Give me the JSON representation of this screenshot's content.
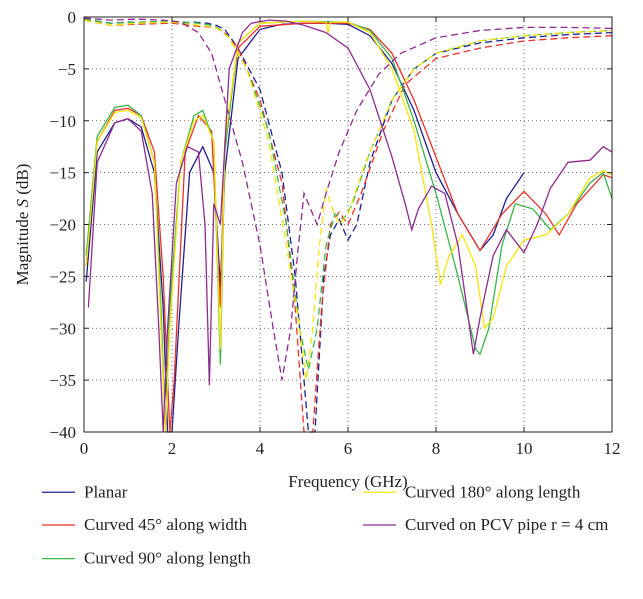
{
  "chart_data": {
    "type": "line",
    "xlabel": "Frequency (GHz)",
    "ylabel_prefix": "Magnitude ",
    "ylabel_var": "S",
    "ylabel_suffix": " (dB)",
    "xlim": [
      0,
      12
    ],
    "ylim": [
      -40,
      0
    ],
    "xticks": [
      0,
      2,
      4,
      6,
      8,
      10,
      12
    ],
    "yticks": [
      0,
      -5,
      -10,
      -15,
      -20,
      -25,
      -30,
      -35,
      -40
    ],
    "grid": true,
    "legend_position": "bottom",
    "series": [
      {
        "name": "Planar",
        "color": "#1f1f8f",
        "s11": [
          [
            0.05,
            -25.5
          ],
          [
            0.3,
            -13
          ],
          [
            0.7,
            -10.2
          ],
          [
            1.0,
            -9.8
          ],
          [
            1.3,
            -10.6
          ],
          [
            1.6,
            -15
          ],
          [
            1.8,
            -28
          ],
          [
            1.9,
            -40
          ],
          [
            2.0,
            -40
          ],
          [
            2.15,
            -30
          ],
          [
            2.4,
            -15
          ],
          [
            2.7,
            -12.5
          ],
          [
            2.95,
            -15
          ],
          [
            3.1,
            -26
          ],
          [
            3.2,
            -15
          ],
          [
            3.5,
            -4
          ],
          [
            4.0,
            -1.2
          ],
          [
            4.5,
            -0.7
          ],
          [
            5.0,
            -0.6
          ],
          [
            5.5,
            -0.6
          ],
          [
            6.0,
            -0.7
          ],
          [
            6.5,
            -1.8
          ],
          [
            7.0,
            -4.5
          ],
          [
            7.5,
            -9
          ],
          [
            8.0,
            -15
          ],
          [
            8.5,
            -19
          ],
          [
            9.0,
            -22.5
          ],
          [
            9.3,
            -21
          ],
          [
            9.6,
            -17.5
          ],
          [
            10.0,
            -15
          ]
        ],
        "s21": [
          [
            0,
            -0.2
          ],
          [
            0.6,
            -0.6
          ],
          [
            1.0,
            -0.5
          ],
          [
            1.6,
            -0.5
          ],
          [
            2.2,
            -0.6
          ],
          [
            2.5,
            -0.5
          ],
          [
            2.8,
            -0.6
          ],
          [
            3.0,
            -0.8
          ],
          [
            3.2,
            -1.2
          ],
          [
            3.5,
            -3
          ],
          [
            4.0,
            -7
          ],
          [
            4.5,
            -15
          ],
          [
            4.8,
            -25
          ],
          [
            5.1,
            -40
          ],
          [
            5.25,
            -40
          ],
          [
            5.45,
            -25
          ],
          [
            5.6,
            -21
          ],
          [
            5.8,
            -19.5
          ],
          [
            6.0,
            -21.5
          ],
          [
            6.2,
            -20
          ],
          [
            6.5,
            -14
          ],
          [
            7.0,
            -8
          ],
          [
            7.5,
            -5
          ],
          [
            8.0,
            -3.5
          ],
          [
            9.0,
            -2.5
          ],
          [
            10.0,
            -2
          ],
          [
            11.0,
            -1.7
          ],
          [
            12.0,
            -1.5
          ]
        ]
      },
      {
        "name": "Curved 45° along width",
        "color": "#e8312b",
        "s11": [
          [
            0.05,
            -24
          ],
          [
            0.3,
            -12
          ],
          [
            0.7,
            -9
          ],
          [
            1.0,
            -8.8
          ],
          [
            1.3,
            -9.5
          ],
          [
            1.6,
            -13
          ],
          [
            1.8,
            -25
          ],
          [
            1.95,
            -40
          ],
          [
            2.05,
            -35
          ],
          [
            2.3,
            -13
          ],
          [
            2.6,
            -9.5
          ],
          [
            2.9,
            -11
          ],
          [
            3.1,
            -28
          ],
          [
            3.2,
            -12
          ],
          [
            3.5,
            -3
          ],
          [
            4.0,
            -0.9
          ],
          [
            5.0,
            -0.6
          ],
          [
            6.0,
            -0.6
          ],
          [
            6.5,
            -1.2
          ],
          [
            7.0,
            -3.5
          ],
          [
            7.5,
            -8
          ],
          [
            8.0,
            -13.5
          ],
          [
            8.5,
            -19
          ],
          [
            9.0,
            -22.5
          ],
          [
            9.5,
            -19
          ],
          [
            10.0,
            -16.8
          ],
          [
            10.5,
            -19
          ],
          [
            10.8,
            -21
          ],
          [
            11.2,
            -18
          ],
          [
            11.8,
            -15.2
          ],
          [
            12.0,
            -15.5
          ]
        ],
        "s21": [
          [
            0,
            -0.3
          ],
          [
            0.6,
            -0.8
          ],
          [
            1.2,
            -0.7
          ],
          [
            2.0,
            -0.6
          ],
          [
            2.6,
            -0.9
          ],
          [
            3.0,
            -1
          ],
          [
            3.2,
            -1.5
          ],
          [
            3.5,
            -3
          ],
          [
            4.0,
            -8
          ],
          [
            4.5,
            -16
          ],
          [
            4.8,
            -28
          ],
          [
            5.0,
            -40
          ],
          [
            5.2,
            -40
          ],
          [
            5.4,
            -28
          ],
          [
            5.6,
            -20
          ],
          [
            5.8,
            -18.8
          ],
          [
            6.0,
            -20
          ],
          [
            6.3,
            -17
          ],
          [
            6.8,
            -11
          ],
          [
            7.3,
            -6.5
          ],
          [
            8.0,
            -4
          ],
          [
            9.0,
            -3
          ],
          [
            10.0,
            -2.3
          ],
          [
            11.0,
            -2
          ],
          [
            12.0,
            -1.8
          ]
        ]
      },
      {
        "name": "Curved 90° along length",
        "color": "#38b54a",
        "s11": [
          [
            0.05,
            -23
          ],
          [
            0.3,
            -11.5
          ],
          [
            0.7,
            -8.7
          ],
          [
            1.0,
            -8.5
          ],
          [
            1.3,
            -9.5
          ],
          [
            1.6,
            -14
          ],
          [
            1.75,
            -28
          ],
          [
            1.85,
            -40
          ],
          [
            1.95,
            -28
          ],
          [
            2.2,
            -14
          ],
          [
            2.5,
            -9.5
          ],
          [
            2.7,
            -9
          ],
          [
            2.95,
            -12
          ],
          [
            3.1,
            -33.5
          ],
          [
            3.2,
            -13
          ],
          [
            3.5,
            -2.5
          ],
          [
            4.0,
            -0.6
          ],
          [
            5.0,
            -0.4
          ],
          [
            6.0,
            -0.5
          ],
          [
            6.5,
            -1.3
          ],
          [
            7.0,
            -4
          ],
          [
            7.5,
            -10
          ],
          [
            8.0,
            -17
          ],
          [
            8.5,
            -25
          ],
          [
            8.9,
            -32
          ],
          [
            9.0,
            -32.5
          ],
          [
            9.2,
            -30
          ],
          [
            9.5,
            -22
          ],
          [
            9.8,
            -18
          ],
          [
            10.2,
            -18.5
          ],
          [
            10.6,
            -20.5
          ],
          [
            11.0,
            -19
          ],
          [
            11.5,
            -16
          ],
          [
            11.8,
            -15
          ],
          [
            12.0,
            -17.5
          ]
        ],
        "s21": [
          [
            0,
            -0.2
          ],
          [
            0.6,
            -0.6
          ],
          [
            1.2,
            -0.5
          ],
          [
            2.0,
            -0.4
          ],
          [
            2.6,
            -0.6
          ],
          [
            3.0,
            -0.9
          ],
          [
            3.3,
            -2
          ],
          [
            3.7,
            -5
          ],
          [
            4.2,
            -11
          ],
          [
            4.6,
            -20
          ],
          [
            4.9,
            -30
          ],
          [
            5.1,
            -34
          ],
          [
            5.3,
            -30
          ],
          [
            5.5,
            -22
          ],
          [
            5.7,
            -19
          ],
          [
            5.9,
            -19.5
          ],
          [
            6.1,
            -18
          ],
          [
            6.5,
            -13
          ],
          [
            7.0,
            -8
          ],
          [
            7.5,
            -5
          ],
          [
            8.0,
            -3.5
          ],
          [
            9.0,
            -2.3
          ],
          [
            10.0,
            -1.8
          ],
          [
            11.0,
            -1.5
          ],
          [
            12.0,
            -1.3
          ]
        ]
      },
      {
        "name": "Curved 180° along length",
        "color": "#f5e50a",
        "s11": [
          [
            0.05,
            -24
          ],
          [
            0.3,
            -12
          ],
          [
            0.7,
            -9.2
          ],
          [
            1.0,
            -9
          ],
          [
            1.3,
            -9.7
          ],
          [
            1.6,
            -14
          ],
          [
            1.75,
            -30
          ],
          [
            1.85,
            -40
          ],
          [
            1.95,
            -30
          ],
          [
            2.2,
            -14
          ],
          [
            2.5,
            -10
          ],
          [
            2.7,
            -9.5
          ],
          [
            2.95,
            -12
          ],
          [
            3.1,
            -32
          ],
          [
            3.2,
            -12
          ],
          [
            3.5,
            -2.5
          ],
          [
            4.0,
            -0.6
          ],
          [
            5.0,
            -0.4
          ],
          [
            5.5,
            -0.5
          ],
          [
            5.55,
            -1.5
          ],
          [
            5.6,
            -0.5
          ],
          [
            6.0,
            -0.5
          ],
          [
            6.5,
            -1.5
          ],
          [
            7.0,
            -5
          ],
          [
            7.5,
            -11
          ],
          [
            7.9,
            -20
          ],
          [
            8.1,
            -25.8
          ],
          [
            8.3,
            -23
          ],
          [
            8.6,
            -21
          ],
          [
            8.9,
            -24
          ],
          [
            9.1,
            -30
          ],
          [
            9.3,
            -29
          ],
          [
            9.6,
            -24
          ],
          [
            10.0,
            -21.5
          ],
          [
            10.5,
            -21
          ],
          [
            11.0,
            -19
          ],
          [
            11.5,
            -15.5
          ],
          [
            11.8,
            -14.8
          ],
          [
            12.0,
            -15.2
          ]
        ],
        "s21": [
          [
            0,
            -0.3
          ],
          [
            0.6,
            -0.8
          ],
          [
            1.2,
            -0.6
          ],
          [
            2.0,
            -0.5
          ],
          [
            2.6,
            -0.8
          ],
          [
            3.0,
            -1
          ],
          [
            3.3,
            -2
          ],
          [
            3.7,
            -5
          ],
          [
            4.2,
            -12
          ],
          [
            4.6,
            -22
          ],
          [
            4.9,
            -30
          ],
          [
            5.05,
            -35
          ],
          [
            5.2,
            -30
          ],
          [
            5.35,
            -22
          ],
          [
            5.5,
            -16.5
          ],
          [
            5.6,
            -18
          ],
          [
            5.8,
            -20
          ],
          [
            6.0,
            -19
          ],
          [
            6.4,
            -14
          ],
          [
            7.0,
            -8
          ],
          [
            7.5,
            -5
          ],
          [
            8.0,
            -3.5
          ],
          [
            9.0,
            -2.3
          ],
          [
            10.0,
            -1.8
          ],
          [
            11.0,
            -1.5
          ],
          [
            12.0,
            -1.3
          ]
        ]
      },
      {
        "name": "Curved on PCV pipe r = 4 cm",
        "color": "#8e2b8e",
        "s11": [
          [
            0.1,
            -28
          ],
          [
            0.3,
            -14
          ],
          [
            0.7,
            -10.2
          ],
          [
            1.0,
            -9.8
          ],
          [
            1.3,
            -11
          ],
          [
            1.55,
            -17
          ],
          [
            1.7,
            -30
          ],
          [
            1.8,
            -40
          ],
          [
            1.9,
            -30
          ],
          [
            2.1,
            -16
          ],
          [
            2.35,
            -12.5
          ],
          [
            2.6,
            -13
          ],
          [
            2.75,
            -20
          ],
          [
            2.85,
            -35.5
          ],
          [
            2.95,
            -18
          ],
          [
            3.1,
            -20
          ],
          [
            3.3,
            -5
          ],
          [
            3.6,
            -1.5
          ],
          [
            3.8,
            -0.6
          ],
          [
            4.2,
            -0.3
          ],
          [
            4.6,
            -0.4
          ],
          [
            5.0,
            -0.8
          ],
          [
            5.5,
            -1.5
          ],
          [
            6.0,
            -3
          ],
          [
            6.5,
            -7
          ],
          [
            7.0,
            -13.5
          ],
          [
            7.3,
            -18
          ],
          [
            7.45,
            -20.5
          ],
          [
            7.6,
            -18.5
          ],
          [
            7.9,
            -16.3
          ],
          [
            8.2,
            -17
          ],
          [
            8.5,
            -22
          ],
          [
            8.7,
            -28
          ],
          [
            8.85,
            -32.5
          ],
          [
            9.0,
            -29
          ],
          [
            9.3,
            -23
          ],
          [
            9.6,
            -20.5
          ],
          [
            10.0,
            -22.7
          ],
          [
            10.3,
            -20
          ],
          [
            10.6,
            -16.5
          ],
          [
            11.0,
            -14
          ],
          [
            11.5,
            -13.8
          ],
          [
            11.8,
            -12.5
          ],
          [
            12.0,
            -13
          ]
        ],
        "s21": [
          [
            0,
            -0.1
          ],
          [
            0.6,
            -0.3
          ],
          [
            1.2,
            -0.2
          ],
          [
            1.8,
            -0.3
          ],
          [
            2.2,
            -0.5
          ],
          [
            2.6,
            -1.5
          ],
          [
            2.9,
            -3.5
          ],
          [
            3.2,
            -8
          ],
          [
            3.6,
            -14
          ],
          [
            4.0,
            -22
          ],
          [
            4.3,
            -30
          ],
          [
            4.5,
            -35
          ],
          [
            4.7,
            -30
          ],
          [
            4.85,
            -23
          ],
          [
            5.0,
            -17
          ],
          [
            5.1,
            -18
          ],
          [
            5.3,
            -20
          ],
          [
            5.5,
            -17
          ],
          [
            5.8,
            -13
          ],
          [
            6.2,
            -9
          ],
          [
            6.7,
            -5.5
          ],
          [
            7.2,
            -3.5
          ],
          [
            8.0,
            -2
          ],
          [
            9.0,
            -1.3
          ],
          [
            10.0,
            -1
          ],
          [
            11.0,
            -1
          ],
          [
            12.0,
            -1.1
          ]
        ]
      }
    ]
  }
}
